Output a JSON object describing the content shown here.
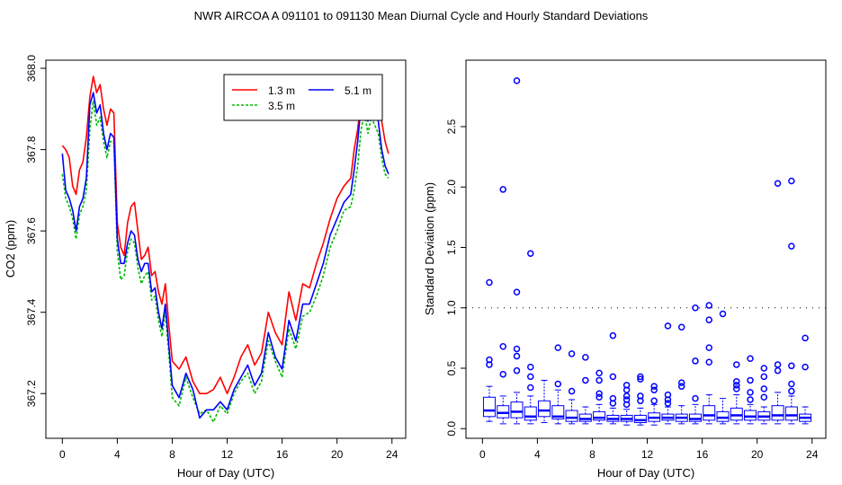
{
  "figure": {
    "title": "NWR   AIRCOA A   091101 to 091130   Mean Diurnal Cycle and Hourly Standard Deviations"
  },
  "chart_data": [
    {
      "type": "line",
      "title": "",
      "xlabel": "Hour of Day (UTC)",
      "ylabel": "CO2 (ppm)",
      "xlim": [
        -1.2,
        25.0
      ],
      "ylim": [
        367.09,
        368.02
      ],
      "xticks": [
        "0",
        "4",
        "8",
        "12",
        "16",
        "20",
        "24"
      ],
      "xtick_values": [
        0,
        4,
        8,
        12,
        16,
        20,
        24
      ],
      "yticks": [
        "367.2",
        "367.4",
        "367.6",
        "367.8",
        "368.0"
      ],
      "ytick_values": [
        367.2,
        367.4,
        367.6,
        367.8,
        368.0
      ],
      "legend": {
        "position": "top-right"
      },
      "x_ctrl": [
        0,
        0.25,
        0.5,
        0.75,
        1,
        1.25,
        1.5,
        1.75,
        2,
        2.25,
        2.5,
        2.75,
        3,
        3.25,
        3.5,
        3.75,
        4,
        4.25,
        4.5,
        4.75,
        5,
        5.25,
        5.5,
        5.75,
        6,
        6.25,
        6.5,
        6.75,
        7,
        7.25,
        7.5,
        7.75,
        8,
        8.5,
        9,
        9.5,
        10,
        10.5,
        11,
        11.5,
        12,
        12.5,
        13,
        13.5,
        14,
        14.5,
        15,
        15.5,
        16,
        16.5,
        17,
        17.5,
        18,
        18.5,
        19,
        19.5,
        20,
        20.5,
        21,
        21.25,
        21.5,
        21.75,
        22,
        22.25,
        22.5,
        22.75,
        23,
        23.25,
        23.5,
        23.75
      ],
      "series": [
        {
          "name": "1.3 m",
          "color": "#ff0000",
          "dash": "",
          "values": [
            367.81,
            367.8,
            367.78,
            367.71,
            367.69,
            367.75,
            367.77,
            367.83,
            367.93,
            367.98,
            367.94,
            367.96,
            367.9,
            367.86,
            367.9,
            367.89,
            367.62,
            367.56,
            367.54,
            367.62,
            367.66,
            367.67,
            367.6,
            367.53,
            367.54,
            367.56,
            367.49,
            367.5,
            367.45,
            367.42,
            367.47,
            367.37,
            367.28,
            367.26,
            367.29,
            367.23,
            367.2,
            367.2,
            367.21,
            367.24,
            367.2,
            367.24,
            367.29,
            367.32,
            367.27,
            367.3,
            367.4,
            367.35,
            367.32,
            367.45,
            367.38,
            367.47,
            367.46,
            367.52,
            367.57,
            367.63,
            367.68,
            367.71,
            367.73,
            367.8,
            367.85,
            367.92,
            367.97,
            367.93,
            367.98,
            367.96,
            367.93,
            367.87,
            367.82,
            367.79
          ]
        },
        {
          "name": "3.5 m",
          "color": "#00bb00",
          "dash": "3,2",
          "values": [
            367.74,
            367.68,
            367.66,
            367.63,
            367.58,
            367.64,
            367.66,
            367.7,
            367.85,
            367.92,
            367.86,
            367.88,
            367.82,
            367.78,
            367.82,
            367.82,
            367.55,
            367.48,
            367.49,
            367.55,
            367.58,
            367.57,
            367.51,
            367.47,
            367.49,
            367.5,
            367.43,
            367.44,
            367.38,
            367.34,
            367.4,
            367.3,
            367.19,
            367.17,
            367.24,
            367.19,
            367.15,
            367.16,
            367.13,
            367.17,
            367.15,
            367.2,
            367.23,
            367.25,
            367.2,
            367.23,
            367.33,
            367.28,
            367.24,
            367.36,
            367.31,
            367.39,
            367.4,
            367.44,
            367.49,
            367.56,
            367.6,
            367.65,
            367.66,
            367.7,
            367.76,
            367.85,
            367.89,
            367.84,
            367.88,
            367.86,
            367.84,
            367.78,
            367.74,
            367.73
          ]
        },
        {
          "name": "5.1 m",
          "color": "#0000ff",
          "dash": "",
          "values": [
            367.79,
            367.7,
            367.68,
            367.65,
            367.6,
            367.66,
            367.68,
            367.73,
            367.91,
            367.94,
            367.89,
            367.91,
            367.84,
            367.8,
            367.84,
            367.83,
            367.58,
            367.52,
            367.52,
            367.57,
            367.6,
            367.59,
            367.53,
            367.5,
            367.52,
            367.52,
            367.45,
            367.46,
            367.4,
            367.36,
            367.42,
            367.32,
            367.22,
            367.19,
            367.25,
            367.21,
            367.14,
            367.16,
            367.16,
            367.18,
            367.16,
            367.21,
            367.24,
            367.27,
            367.22,
            367.25,
            367.35,
            367.29,
            367.26,
            367.38,
            367.33,
            367.42,
            367.42,
            367.47,
            367.52,
            367.59,
            367.63,
            367.67,
            367.69,
            367.75,
            367.82,
            367.91,
            367.97,
            367.87,
            367.92,
            367.9,
            367.87,
            367.8,
            367.76,
            367.74
          ]
        }
      ]
    },
    {
      "type": "box",
      "title": "",
      "xlabel": "Hour of Day (UTC)",
      "ylabel": "Standard Deviation (ppm)",
      "xlim": [
        -1.2,
        25.0
      ],
      "ylim": [
        -0.08,
        3.05
      ],
      "xticks": [
        "0",
        "4",
        "8",
        "12",
        "16",
        "20",
        "24"
      ],
      "xtick_values": [
        0,
        4,
        8,
        12,
        16,
        20,
        24
      ],
      "yticks": [
        "0.0",
        "0.5",
        "1.0",
        "1.5",
        "2.0",
        "2.5"
      ],
      "ytick_values": [
        0.0,
        0.5,
        1.0,
        1.5,
        2.0,
        2.5
      ],
      "reference_line": 1.0,
      "box_color": "#0000ff",
      "boxes": [
        {
          "x": 0.5,
          "lw": 0.06,
          "q1": 0.1,
          "med": 0.15,
          "q3": 0.26,
          "uw": 0.35,
          "outliers": [
            1.21,
            0.57,
            0.53
          ]
        },
        {
          "x": 1.5,
          "lw": 0.04,
          "q1": 0.09,
          "med": 0.13,
          "q3": 0.19,
          "uw": 0.27,
          "outliers": [
            1.98,
            0.68,
            0.45
          ]
        },
        {
          "x": 2.5,
          "lw": 0.04,
          "q1": 0.09,
          "med": 0.14,
          "q3": 0.22,
          "uw": 0.3,
          "outliers": [
            2.88,
            1.13,
            0.66,
            0.6,
            0.48
          ]
        },
        {
          "x": 3.5,
          "lw": 0.04,
          "q1": 0.07,
          "med": 0.1,
          "q3": 0.18,
          "uw": 0.27,
          "outliers": [
            1.45,
            0.51,
            0.43,
            0.34
          ]
        },
        {
          "x": 4.5,
          "lw": 0.05,
          "q1": 0.1,
          "med": 0.15,
          "q3": 0.23,
          "uw": 0.4,
          "outliers": []
        },
        {
          "x": 5.5,
          "lw": 0.04,
          "q1": 0.08,
          "med": 0.1,
          "q3": 0.19,
          "uw": 0.32,
          "outliers": [
            0.67,
            0.37
          ]
        },
        {
          "x": 6.5,
          "lw": 0.04,
          "q1": 0.06,
          "med": 0.09,
          "q3": 0.15,
          "uw": 0.24,
          "outliers": [
            0.62,
            0.31
          ]
        },
        {
          "x": 7.5,
          "lw": 0.04,
          "q1": 0.06,
          "med": 0.08,
          "q3": 0.12,
          "uw": 0.18,
          "outliers": [
            0.59,
            0.4
          ]
        },
        {
          "x": 8.5,
          "lw": 0.04,
          "q1": 0.07,
          "med": 0.09,
          "q3": 0.14,
          "uw": 0.2,
          "outliers": [
            0.46,
            0.4,
            0.29,
            0.26
          ]
        },
        {
          "x": 9.5,
          "lw": 0.04,
          "q1": 0.06,
          "med": 0.08,
          "q3": 0.11,
          "uw": 0.17,
          "outliers": [
            0.77,
            0.43,
            0.25,
            0.21
          ]
        },
        {
          "x": 10.5,
          "lw": 0.03,
          "q1": 0.06,
          "med": 0.08,
          "q3": 0.11,
          "uw": 0.16,
          "outliers": [
            0.36,
            0.32,
            0.27,
            0.24,
            0.2
          ]
        },
        {
          "x": 11.5,
          "lw": 0.03,
          "q1": 0.05,
          "med": 0.07,
          "q3": 0.11,
          "uw": 0.17,
          "outliers": [
            0.43,
            0.41,
            0.27,
            0.23
          ]
        },
        {
          "x": 12.5,
          "lw": 0.03,
          "q1": 0.06,
          "med": 0.09,
          "q3": 0.13,
          "uw": 0.2,
          "outliers": [
            0.35,
            0.32,
            0.23
          ]
        },
        {
          "x": 13.5,
          "lw": 0.04,
          "q1": 0.07,
          "med": 0.09,
          "q3": 0.12,
          "uw": 0.18,
          "outliers": [
            0.85,
            0.28,
            0.24,
            0.21
          ]
        },
        {
          "x": 14.5,
          "lw": 0.04,
          "q1": 0.06,
          "med": 0.09,
          "q3": 0.12,
          "uw": 0.19,
          "outliers": [
            0.84,
            0.38,
            0.35
          ]
        },
        {
          "x": 15.5,
          "lw": 0.04,
          "q1": 0.06,
          "med": 0.08,
          "q3": 0.12,
          "uw": 0.2,
          "outliers": [
            1.0,
            0.56,
            0.25
          ]
        },
        {
          "x": 16.5,
          "lw": 0.04,
          "q1": 0.07,
          "med": 0.11,
          "q3": 0.19,
          "uw": 0.28,
          "outliers": [
            1.02,
            0.9,
            0.67,
            0.55
          ]
        },
        {
          "x": 17.5,
          "lw": 0.04,
          "q1": 0.06,
          "med": 0.09,
          "q3": 0.14,
          "uw": 0.25,
          "outliers": [
            0.95
          ]
        },
        {
          "x": 18.5,
          "lw": 0.04,
          "q1": 0.07,
          "med": 0.11,
          "q3": 0.17,
          "uw": 0.28,
          "outliers": [
            0.53,
            0.39,
            0.36,
            0.33
          ]
        },
        {
          "x": 19.5,
          "lw": 0.04,
          "q1": 0.07,
          "med": 0.1,
          "q3": 0.15,
          "uw": 0.2,
          "outliers": [
            0.58,
            0.4,
            0.3,
            0.24
          ]
        },
        {
          "x": 20.5,
          "lw": 0.04,
          "q1": 0.07,
          "med": 0.1,
          "q3": 0.14,
          "uw": 0.18,
          "outliers": [
            0.5,
            0.43,
            0.33,
            0.26
          ]
        },
        {
          "x": 21.5,
          "lw": 0.04,
          "q1": 0.07,
          "med": 0.11,
          "q3": 0.19,
          "uw": 0.3,
          "outliers": [
            2.03,
            0.53,
            0.48
          ]
        },
        {
          "x": 22.5,
          "lw": 0.04,
          "q1": 0.07,
          "med": 0.11,
          "q3": 0.18,
          "uw": 0.27,
          "outliers": [
            2.05,
            1.51,
            0.52,
            0.37,
            0.31
          ]
        },
        {
          "x": 23.5,
          "lw": 0.04,
          "q1": 0.06,
          "med": 0.09,
          "q3": 0.12,
          "uw": 0.18,
          "outliers": [
            0.75,
            0.51
          ]
        }
      ]
    }
  ]
}
